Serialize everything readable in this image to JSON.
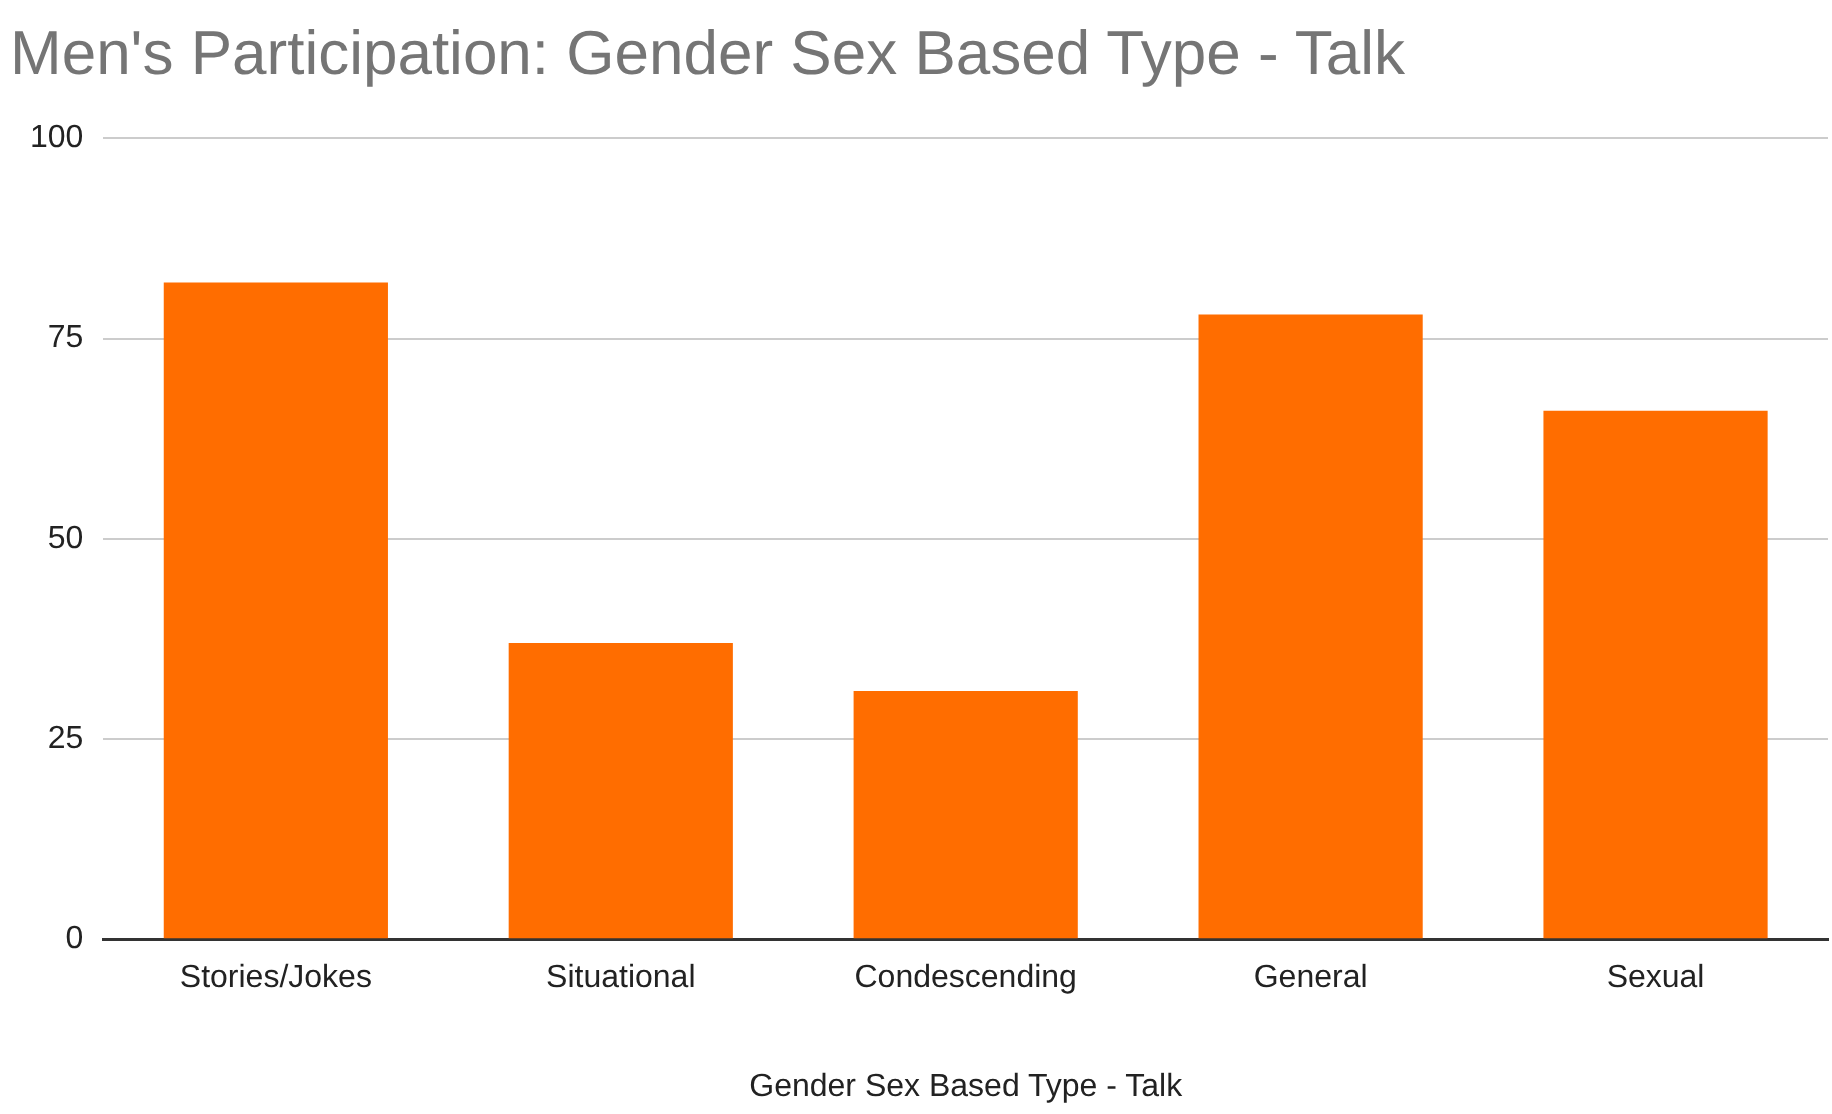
{
  "chart_data": {
    "type": "bar",
    "title": "Men's Participation: Gender Sex Based Type - Talk",
    "xlabel": "Gender Sex Based Type - Talk",
    "categories": [
      "Stories/Jokes",
      "Situational",
      "Condescending",
      "General",
      "Sexual"
    ],
    "values": [
      82,
      37,
      31,
      78,
      66
    ],
    "color": "#ff6d00",
    "ylim": [
      0,
      100
    ],
    "yticks": [
      0,
      25,
      50,
      75,
      100
    ],
    "grid": "y",
    "legend": false
  }
}
